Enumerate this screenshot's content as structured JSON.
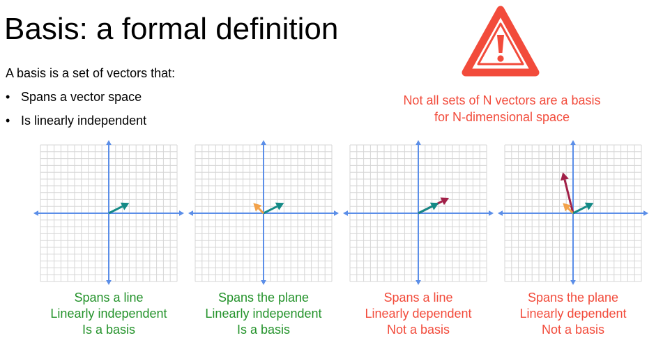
{
  "title": "Basis: a formal definition",
  "intro": "A basis is a set of vectors that:",
  "bullets": [
    "Spans a vector space",
    "Is linearly independent"
  ],
  "bullet_symbol": "•",
  "warning": {
    "icon": "warning-triangle-icon",
    "color": "#f24b3b",
    "lines": [
      "Not all sets of N vectors are a basis",
      "for N-dimensional space"
    ]
  },
  "colors": {
    "green_text": "#23922a",
    "red_text": "#f24b3b",
    "axis": "#5b8ee8",
    "grid": "#d6d6d6",
    "teal_vector": "#148a86",
    "orange_vector": "#f2a24a",
    "maroon_vector": "#a12048"
  },
  "panels": [
    {
      "vectors": [
        {
          "color": "teal",
          "x": 2,
          "y": 1
        }
      ],
      "caption": [
        "Spans a line",
        "Linearly independent",
        "Is a basis"
      ],
      "caption_color": "green"
    },
    {
      "vectors": [
        {
          "color": "teal",
          "x": 2,
          "y": 1
        },
        {
          "color": "orange",
          "x": -1,
          "y": 1
        }
      ],
      "caption": [
        "Spans the plane",
        "Linearly independent",
        "Is a basis"
      ],
      "caption_color": "green"
    },
    {
      "vectors": [
        {
          "color": "maroon",
          "x": 3,
          "y": 1.5
        },
        {
          "color": "teal",
          "x": 2,
          "y": 1
        }
      ],
      "caption": [
        "Spans a line",
        "Linearly dependent",
        "Not a basis"
      ],
      "caption_color": "red"
    },
    {
      "vectors": [
        {
          "color": "maroon",
          "x": -1,
          "y": 4
        },
        {
          "color": "orange",
          "x": -1,
          "y": 1
        },
        {
          "color": "teal",
          "x": 2,
          "y": 1
        }
      ],
      "caption": [
        "Spans the plane",
        "Linearly dependent",
        "Not a basis"
      ],
      "caption_color": "red"
    }
  ]
}
